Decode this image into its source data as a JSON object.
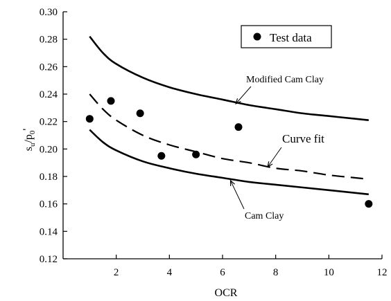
{
  "chart_data": {
    "type": "scatter",
    "xlabel": "OCR",
    "ylabel": "s_u/p_0'",
    "xlim": [
      0,
      12
    ],
    "ylim": [
      0.12,
      0.3
    ],
    "xticks": [
      {
        "value": 2,
        "label": "2"
      },
      {
        "value": 4,
        "label": "4"
      },
      {
        "value": 6,
        "label": "6"
      },
      {
        "value": 8,
        "label": "8"
      },
      {
        "value": 10,
        "label": "10"
      },
      {
        "value": 12,
        "label": "12"
      }
    ],
    "yticks": [
      {
        "value": 0.12,
        "label": "0.12"
      },
      {
        "value": 0.14,
        "label": "0.14"
      },
      {
        "value": 0.16,
        "label": "0.16"
      },
      {
        "value": 0.18,
        "label": "0.18"
      },
      {
        "value": 0.2,
        "label": "0.20"
      },
      {
        "value": 0.22,
        "label": "0.22"
      },
      {
        "value": 0.24,
        "label": "0.24"
      },
      {
        "value": 0.26,
        "label": "0.26"
      },
      {
        "value": 0.28,
        "label": "0.28"
      },
      {
        "value": 0.3,
        "label": "0.30"
      }
    ],
    "grid": false,
    "legend": {
      "position": "top-right",
      "entries": [
        "Test data"
      ]
    },
    "series": [
      {
        "name": "Test data",
        "kind": "scatter",
        "x": [
          1.0,
          1.8,
          2.9,
          3.7,
          5.0,
          6.6,
          11.5
        ],
        "y": [
          0.222,
          0.235,
          0.226,
          0.195,
          0.196,
          0.216,
          0.16
        ]
      },
      {
        "name": "Modified Cam Clay",
        "kind": "line",
        "style": "solid",
        "x": [
          1.0,
          1.5,
          2,
          3,
          4,
          5,
          6,
          7,
          8,
          9,
          10,
          11,
          11.5
        ],
        "y": [
          0.282,
          0.27,
          0.262,
          0.252,
          0.245,
          0.24,
          0.236,
          0.232,
          0.229,
          0.226,
          0.224,
          0.222,
          0.221
        ]
      },
      {
        "name": "Curve fit",
        "kind": "line",
        "style": "dashed",
        "x": [
          1.0,
          1.5,
          2,
          3,
          4,
          5,
          6,
          7,
          8,
          9,
          10,
          11,
          11.5
        ],
        "y": [
          0.24,
          0.229,
          0.221,
          0.21,
          0.203,
          0.198,
          0.193,
          0.19,
          0.186,
          0.184,
          0.181,
          0.179,
          0.178
        ]
      },
      {
        "name": "Cam Clay",
        "kind": "line",
        "style": "solid",
        "x": [
          1.0,
          1.5,
          2,
          3,
          4,
          5,
          6,
          7,
          8,
          9,
          10,
          11,
          11.5
        ],
        "y": [
          0.214,
          0.205,
          0.199,
          0.191,
          0.186,
          0.182,
          0.179,
          0.176,
          0.174,
          0.172,
          0.17,
          0.168,
          0.167
        ]
      }
    ],
    "annotations": [
      {
        "text": "Modified Cam Clay",
        "target": {
          "x": 6.5,
          "y": 0.233
        }
      },
      {
        "text": "Curve fit",
        "target": {
          "x": 7.7,
          "y": 0.187
        }
      },
      {
        "text": "Cam Clay",
        "target": {
          "x": 6.3,
          "y": 0.177
        }
      }
    ],
    "colors": {
      "line": "#000000",
      "marker": "#000000",
      "background": "#ffffff"
    }
  }
}
